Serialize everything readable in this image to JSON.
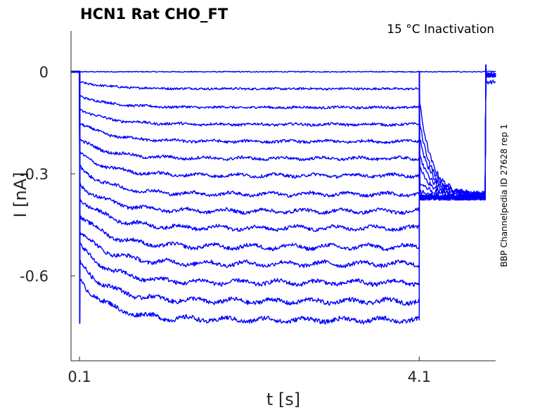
{
  "chart_data": {
    "type": "line",
    "title": "HCN1  Rat  CHO_FT",
    "annotation": "15 °C  Inactivation",
    "side_label": "BBP Channelpedia ID 27628 rep 1",
    "xlabel": "t [s]",
    "ylabel": "I [nA]",
    "xlim": [
      0.0,
      5.0
    ],
    "ylim": [
      -0.85,
      0.12
    ],
    "xticks": [
      {
        "value": 0.1,
        "label": "0.1"
      },
      {
        "value": 4.1,
        "label": "4.1"
      }
    ],
    "yticks": [
      {
        "value": 0,
        "label": "0"
      },
      {
        "value": -0.3,
        "label": "-0.3"
      },
      {
        "value": -0.6,
        "label": "-0.6"
      }
    ],
    "grid": false,
    "color": "#0000ff",
    "protocol": {
      "step_start": 0.1,
      "step_end": 4.1,
      "end": 5.0
    },
    "series": [
      {
        "steady": 0.0,
        "initial": 0.0,
        "tail_peak": 0.0,
        "tail_steady": 0.0
      },
      {
        "steady": -0.05,
        "initial": -0.03,
        "tail_peak": -0.08,
        "tail_steady": -0.36
      },
      {
        "steady": -0.105,
        "initial": -0.07,
        "tail_peak": -0.14,
        "tail_steady": -0.36
      },
      {
        "steady": -0.155,
        "initial": -0.11,
        "tail_peak": -0.19,
        "tail_steady": -0.36
      },
      {
        "steady": -0.205,
        "initial": -0.15,
        "tail_peak": -0.24,
        "tail_steady": -0.36
      },
      {
        "steady": -0.255,
        "initial": -0.2,
        "tail_peak": -0.28,
        "tail_steady": -0.365
      },
      {
        "steady": -0.305,
        "initial": -0.24,
        "tail_peak": -0.32,
        "tail_steady": -0.365
      },
      {
        "steady": -0.36,
        "initial": -0.28,
        "tail_peak": -0.35,
        "tail_steady": -0.37
      },
      {
        "steady": -0.41,
        "initial": -0.33,
        "tail_peak": -0.37,
        "tail_steady": -0.37
      },
      {
        "steady": -0.46,
        "initial": -0.37,
        "tail_peak": -0.37,
        "tail_steady": -0.37
      },
      {
        "steady": -0.515,
        "initial": -0.42,
        "tail_peak": -0.37,
        "tail_steady": -0.37
      },
      {
        "steady": -0.565,
        "initial": -0.47,
        "tail_peak": -0.37,
        "tail_steady": -0.37
      },
      {
        "steady": -0.62,
        "initial": -0.51,
        "tail_peak": -0.37,
        "tail_steady": -0.37
      },
      {
        "steady": -0.675,
        "initial": -0.56,
        "tail_peak": -0.37,
        "tail_steady": -0.37
      },
      {
        "steady": -0.73,
        "initial": -0.61,
        "tail_peak": -0.37,
        "tail_steady": -0.37
      }
    ]
  }
}
